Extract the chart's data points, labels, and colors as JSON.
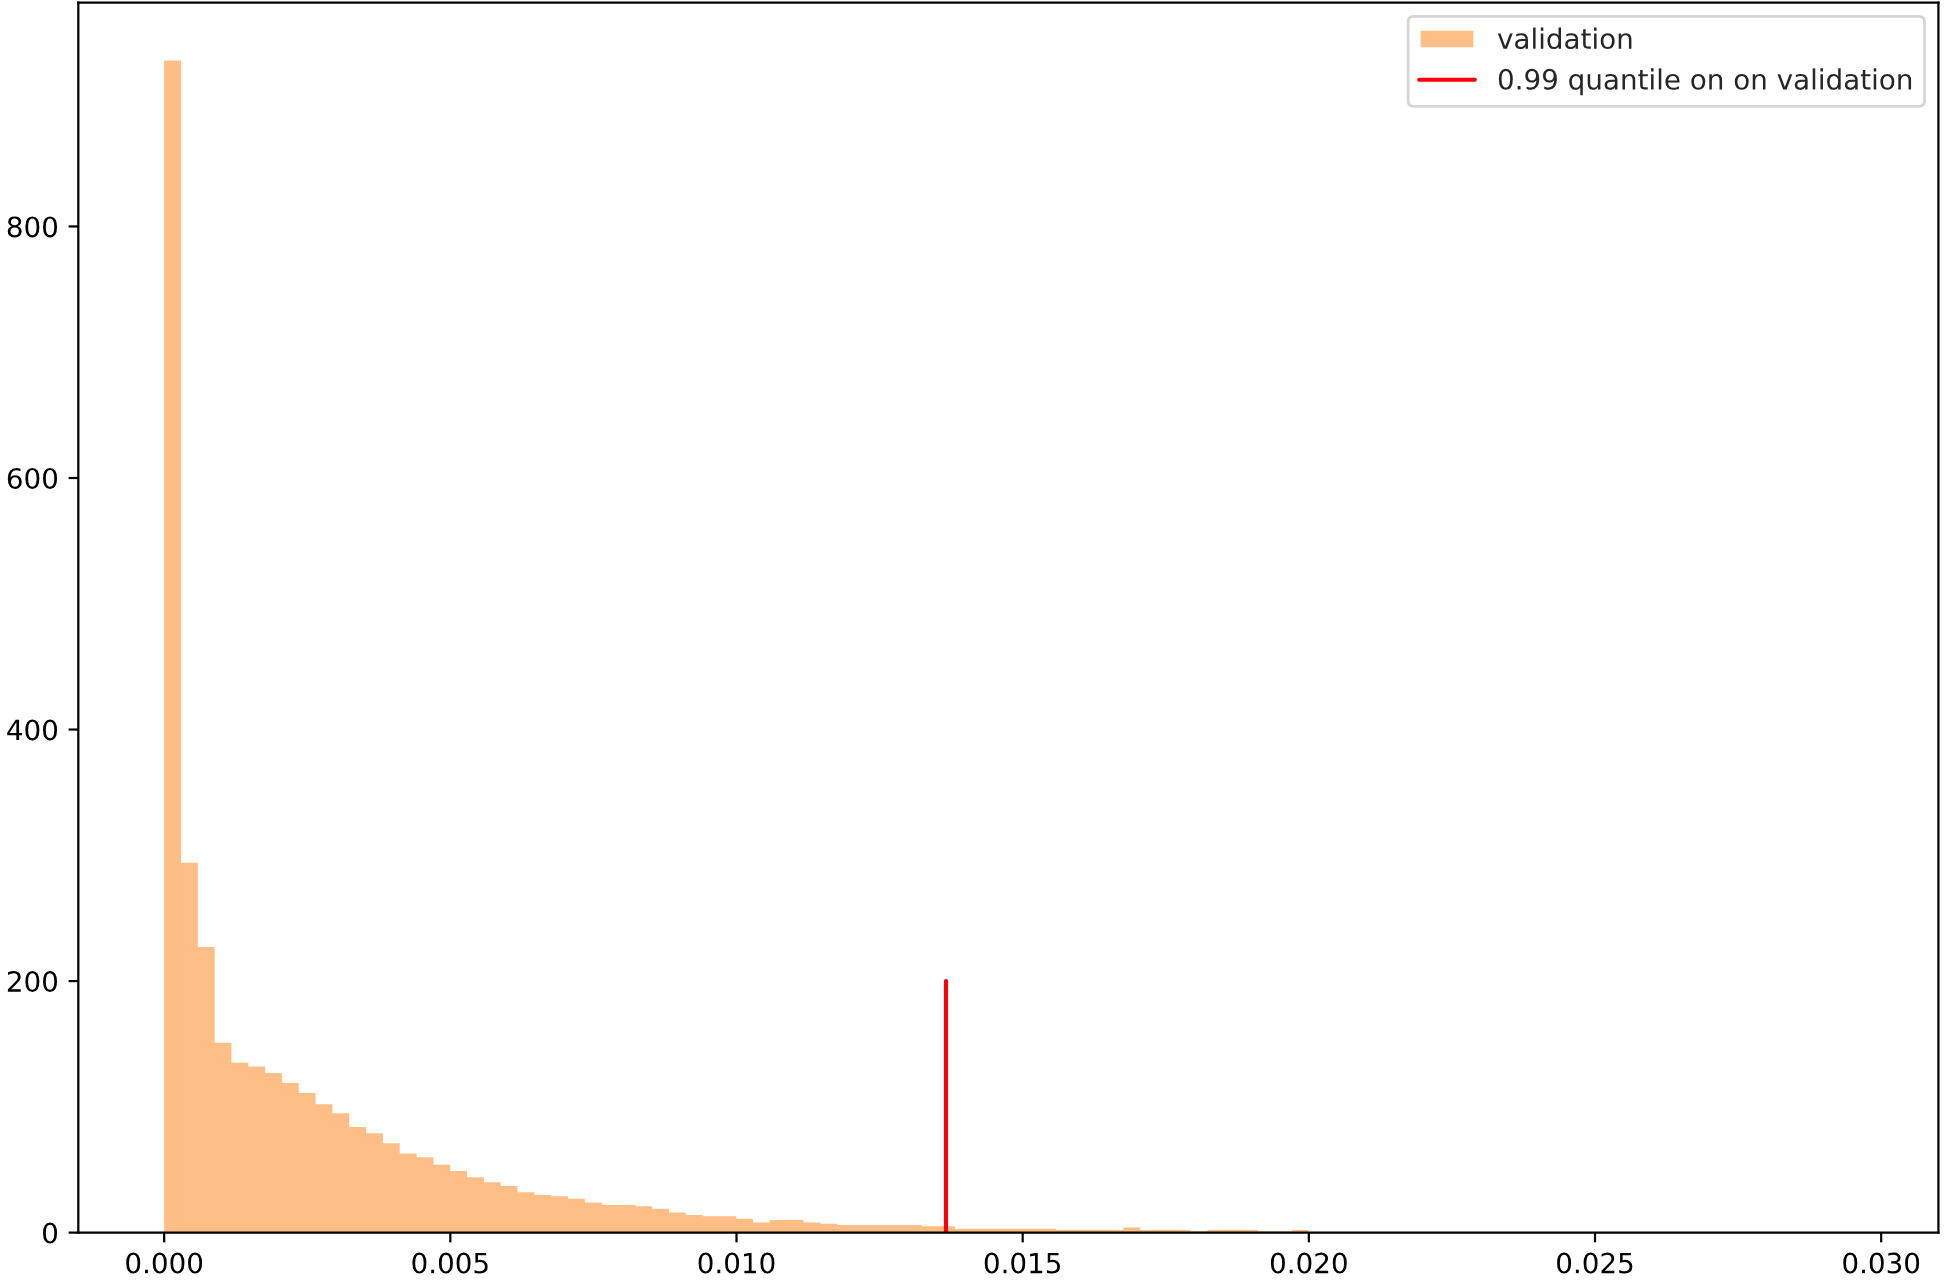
{
  "chart_data": {
    "type": "histogram",
    "series": [
      {
        "name": "validation",
        "color": "#ffbe86",
        "bins": [
          0,
          0.000294,
          0.000588,
          0.000882,
          0.001176,
          0.00147,
          0.001764,
          0.002058,
          0.002352,
          0.002646,
          0.00294,
          0.003234,
          0.003528,
          0.003822,
          0.004116,
          0.00441,
          0.004704,
          0.004998,
          0.005292,
          0.005586,
          0.00588,
          0.006174,
          0.006468,
          0.006762,
          0.007056,
          0.00735,
          0.007644,
          0.007938,
          0.008232,
          0.008526,
          0.00882,
          0.009114,
          0.009408,
          0.009702,
          0.009996,
          0.01029,
          0.010584,
          0.010878,
          0.011172,
          0.011466,
          0.01176,
          0.012054,
          0.012348,
          0.012642,
          0.012936,
          0.01323,
          0.013524,
          0.013818,
          0.014112,
          0.014406,
          0.0147,
          0.014994,
          0.015288,
          0.015582,
          0.015876,
          0.01617,
          0.016464,
          0.016758,
          0.017052,
          0.017346,
          0.01764,
          0.017934,
          0.018228,
          0.018522,
          0.018816,
          0.01911,
          0.019404,
          0.019698,
          0.019992
        ],
        "values": [
          932,
          294,
          227,
          151,
          135,
          132,
          127,
          119,
          111,
          102,
          95,
          84,
          79,
          71,
          63,
          60,
          54,
          49,
          44,
          40,
          37,
          32,
          30,
          29,
          27,
          24,
          22,
          22,
          21,
          19,
          16,
          14,
          13,
          13,
          11,
          8,
          10,
          10,
          8,
          7,
          6,
          6,
          6,
          6,
          6,
          5,
          5,
          3,
          3,
          3,
          3,
          3,
          3,
          2,
          2,
          2,
          2,
          4,
          2,
          2,
          2,
          1,
          2,
          2,
          2,
          1,
          1,
          2
        ]
      },
      {
        "type": "line",
        "name": "0.99 quantile on on validation",
        "color": "#ff0000",
        "x": [
          0.01366,
          0.01366
        ],
        "values": [
          0,
          200
        ]
      }
    ],
    "xlim": [
      -0.0015,
      0.031
    ],
    "ylim": [
      0,
      978
    ],
    "xticks": [
      {
        "value": 0,
        "label": "0.000"
      },
      {
        "value": 0.005,
        "label": "0.005"
      },
      {
        "value": 0.01,
        "label": "0.010"
      },
      {
        "value": 0.015,
        "label": "0.015"
      },
      {
        "value": 0.02,
        "label": "0.020"
      },
      {
        "value": 0.025,
        "label": "0.025"
      },
      {
        "value": 0.03,
        "label": "0.030"
      }
    ],
    "yticks": [
      0,
      200,
      400,
      600,
      800
    ],
    "grid": false,
    "legend": "top right"
  }
}
